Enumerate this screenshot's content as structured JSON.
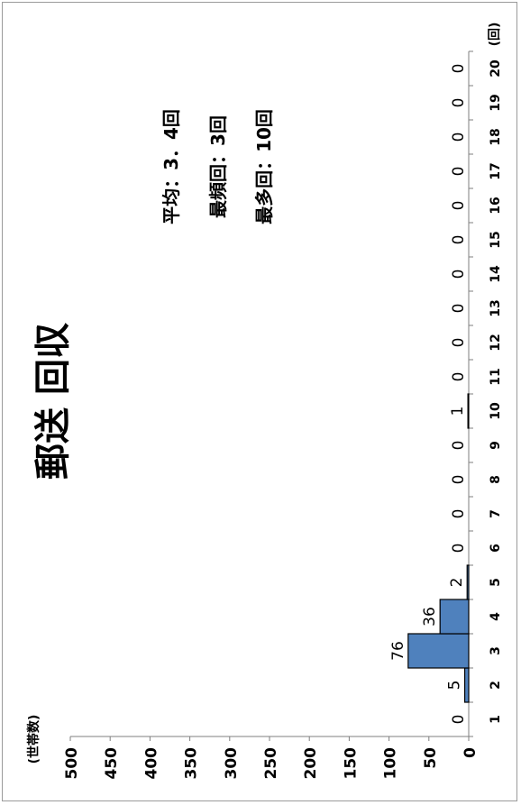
{
  "chart_data": {
    "type": "bar",
    "orientation": "rotated-90-clockwise",
    "title": "郵送 回収",
    "categories": [
      "1",
      "2",
      "3",
      "4",
      "5",
      "6",
      "7",
      "8",
      "9",
      "10",
      "11",
      "12",
      "13",
      "14",
      "15",
      "16",
      "17",
      "18",
      "19",
      "20"
    ],
    "values": [
      0,
      5,
      76,
      36,
      2,
      0,
      0,
      0,
      0,
      1,
      0,
      0,
      0,
      0,
      0,
      0,
      0,
      0,
      0,
      0
    ],
    "xlabel": "(回)",
    "ylabel": "(世帯数)",
    "ylim": [
      0,
      500
    ],
    "yticks": [
      0,
      50,
      100,
      150,
      200,
      250,
      300,
      350,
      400,
      450,
      500
    ],
    "bar_color": "#4f81bd",
    "grid": false,
    "legend": "none"
  },
  "stats": {
    "mean": "平均：3．4回",
    "mode": "最頻回：3回",
    "max": "最多回：10回"
  }
}
